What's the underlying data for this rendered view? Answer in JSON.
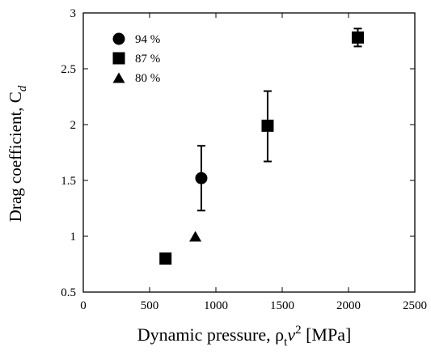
{
  "chart_data": {
    "type": "scatter",
    "xlabel": "Dynamic pressure, ρ",
    "xlabel_sub": "t",
    "xlabel_var": "v",
    "xlabel_sup": "2",
    "xlabel_unit": "[MPa]",
    "ylabel": "Drag coefficient, C",
    "ylabel_sub": "d",
    "xlim": [
      0,
      2500
    ],
    "ylim": [
      0.5,
      3
    ],
    "x_ticks": [
      0,
      500,
      1000,
      1500,
      2000,
      2500
    ],
    "y_ticks": [
      0.5,
      1,
      1.5,
      2,
      2.5,
      3
    ],
    "y_tick_labels": [
      "0.5",
      "1",
      "1.5",
      "2",
      "2.5",
      "3"
    ],
    "grid": false,
    "legend_position": "top-left",
    "series": [
      {
        "name": "94 %",
        "marker": "circle",
        "points": [
          {
            "x": 890,
            "y": 1.52,
            "err_low": 1.23,
            "err_high": 1.81
          }
        ]
      },
      {
        "name": "87 %",
        "marker": "square",
        "points": [
          {
            "x": 620,
            "y": 0.8
          },
          {
            "x": 1390,
            "y": 1.99,
            "err_low": 1.67,
            "err_high": 2.3
          },
          {
            "x": 2070,
            "y": 2.78,
            "err_low": 2.7,
            "err_high": 2.86
          }
        ]
      },
      {
        "name": "80 %",
        "marker": "triangle",
        "points": [
          {
            "x": 845,
            "y": 1.0
          }
        ]
      }
    ]
  }
}
